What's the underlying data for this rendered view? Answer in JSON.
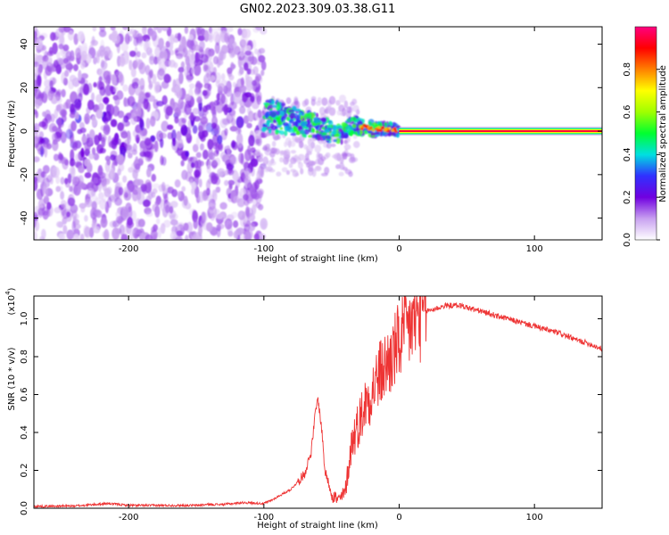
{
  "title": "GN02.2023.309.03.38.G11",
  "chart_data": [
    {
      "type": "heatmap",
      "xlabel": "Height of straight line (km)",
      "ylabel": "Frequency (Hz)",
      "xlim": [
        -270,
        150
      ],
      "ylim": [
        -50,
        48
      ],
      "xticks": [
        -200,
        -100,
        0,
        100
      ],
      "yticks": [
        -40,
        -20,
        0,
        20,
        40
      ],
      "grid": false,
      "colorbar": {
        "label": "Normalized spectral amplitude",
        "range": [
          0,
          1
        ],
        "ticks": [
          0.0,
          0.2,
          0.4,
          0.6,
          0.8
        ],
        "colormap": "rainbow",
        "colors": [
          "#ffffff",
          "#c8a0f0",
          "#7000e0",
          "#3030ff",
          "#00e0e0",
          "#00ff30",
          "#a0ff00",
          "#ffff00",
          "#ff8000",
          "#ff0000",
          "#ff0080"
        ]
      },
      "features": [
        {
          "region": "noise",
          "x_range": [
            -270,
            -100
          ],
          "freq_range": [
            -50,
            48
          ],
          "amplitude": 0.1
        },
        {
          "region": "converging trace",
          "points": [
            [
              -100,
              8
            ],
            [
              -80,
              5
            ],
            [
              -60,
              2
            ],
            [
              -45,
              -2
            ],
            [
              -35,
              3
            ],
            [
              -20,
              1
            ],
            [
              -5,
              1
            ],
            [
              0,
              0
            ]
          ],
          "amplitude": 0.35
        },
        {
          "region": "carrier line",
          "x_range": [
            0,
            150
          ],
          "freq": 0,
          "amplitude": 0.95
        }
      ]
    },
    {
      "type": "line",
      "xlabel": "Height of straight line (km)",
      "ylabel": "SNR (10 * v/v)",
      "y_multiplier": "(x10",
      "y_multiplier_exp": "4",
      "xlim": [
        -270,
        150
      ],
      "ylim": [
        0,
        1.12
      ],
      "xticks": [
        -200,
        -100,
        0,
        100
      ],
      "yticks": [
        0.0,
        0.2,
        0.4,
        0.6,
        0.8,
        1.0
      ],
      "grid": false,
      "series": [
        {
          "color": "#ee3333",
          "x": [
            -270,
            -240,
            -215,
            -200,
            -180,
            -150,
            -141,
            -130,
            -115,
            -100,
            -95,
            -90,
            -85,
            -80,
            -75,
            -70,
            -65,
            -62,
            -60,
            -57,
            -55,
            -50,
            -45,
            -40,
            -35,
            -30,
            -25,
            -20,
            -15,
            -10,
            -5,
            0,
            5,
            10,
            15,
            20,
            25,
            30,
            35,
            40,
            45,
            50,
            60,
            70,
            80,
            90,
            100,
            110,
            120,
            130,
            140,
            150
          ],
          "y": [
            0.01,
            0.012,
            0.025,
            0.015,
            0.015,
            0.015,
            0.02,
            0.02,
            0.03,
            0.025,
            0.04,
            0.06,
            0.08,
            0.1,
            0.14,
            0.18,
            0.3,
            0.5,
            0.58,
            0.4,
            0.2,
            0.08,
            0.04,
            0.08,
            0.35,
            0.45,
            0.55,
            0.62,
            0.7,
            0.75,
            0.8,
            0.88,
            0.93,
            0.98,
            1.02,
            1.04,
            1.05,
            1.06,
            1.07,
            1.07,
            1.07,
            1.06,
            1.04,
            1.02,
            1.0,
            0.98,
            0.96,
            0.94,
            0.92,
            0.89,
            0.87,
            0.84
          ]
        }
      ]
    }
  ]
}
